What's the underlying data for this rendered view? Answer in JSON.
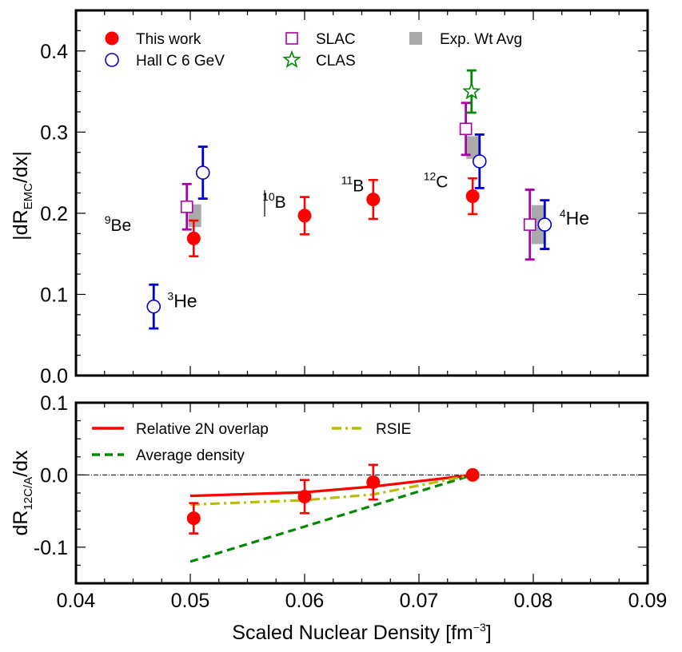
{
  "chart_data": [
    {
      "type": "scatter",
      "panel": "top",
      "ylabel_main": "|dR",
      "ylabel_sub": "EMC",
      "ylabel_tail": "/dx|",
      "xlim": [
        0.04,
        0.09
      ],
      "ylim": [
        0.0,
        0.45
      ],
      "x_ticks": [
        "0.04",
        "0.05",
        "0.06",
        "0.07",
        "0.08",
        "0.09"
      ],
      "y_ticks": [
        "0.0",
        "0.1",
        "0.2",
        "0.3",
        "0.4"
      ],
      "legend": [
        {
          "label": "This work",
          "symbol": "filled-circle",
          "color": "#ff0000"
        },
        {
          "label": "Hall C 6 GeV",
          "symbol": "open-circle",
          "color": "#0000cc"
        },
        {
          "label": "SLAC",
          "symbol": "open-square",
          "color": "#aa00aa"
        },
        {
          "label": "CLAS",
          "symbol": "open-star",
          "color": "#008800"
        },
        {
          "label": "Exp. Wt Avg",
          "symbol": "filled-square",
          "color": "#aaaaaa"
        }
      ],
      "series": [
        {
          "name": "This work",
          "color": "#ff0000",
          "marker": "filled-circle",
          "points": [
            {
              "x": 0.0503,
              "y": 0.169,
              "err": 0.022
            },
            {
              "x": 0.06,
              "y": 0.197,
              "err": 0.023
            },
            {
              "x": 0.066,
              "y": 0.217,
              "err": 0.024
            },
            {
              "x": 0.0747,
              "y": 0.221,
              "err": 0.022
            }
          ]
        },
        {
          "name": "Hall C 6 GeV",
          "color": "#0000cc",
          "marker": "open-circle",
          "points": [
            {
              "x": 0.0468,
              "y": 0.085,
              "err": 0.027
            },
            {
              "x": 0.0511,
              "y": 0.25,
              "err": 0.032
            },
            {
              "x": 0.0753,
              "y": 0.264,
              "err": 0.033
            },
            {
              "x": 0.081,
              "y": 0.186,
              "err": 0.03
            }
          ]
        },
        {
          "name": "SLAC",
          "color": "#aa00aa",
          "marker": "open-square",
          "points": [
            {
              "x": 0.0497,
              "y": 0.208,
              "err": 0.028
            },
            {
              "x": 0.0741,
              "y": 0.304,
              "err": 0.032
            },
            {
              "x": 0.0797,
              "y": 0.186,
              "err": 0.043
            }
          ]
        },
        {
          "name": "CLAS",
          "color": "#008800",
          "marker": "open-star",
          "points": [
            {
              "x": 0.0746,
              "y": 0.35,
              "err": 0.026
            }
          ]
        },
        {
          "name": "Exp. Wt Avg",
          "color": "#aaaaaa",
          "marker": "band",
          "points": [
            {
              "x": 0.0504,
              "y": 0.197,
              "err": 0.014
            },
            {
              "x": 0.0747,
              "y": 0.281,
              "err": 0.014
            },
            {
              "x": 0.0804,
              "y": 0.186,
              "err": 0.024
            }
          ]
        }
      ],
      "annotations": [
        {
          "mass": "9",
          "symbol": "Be",
          "x": 0.0425,
          "y": 0.178,
          "big": false
        },
        {
          "mass": "3",
          "symbol": "He",
          "x": 0.048,
          "y": 0.084,
          "big": true
        },
        {
          "mass": "10",
          "symbol": "B",
          "x": 0.0563,
          "y": 0.207,
          "big": false
        },
        {
          "mass": "11",
          "symbol": "B",
          "x": 0.0632,
          "y": 0.227,
          "big": false
        },
        {
          "mass": "12",
          "symbol": "C",
          "x": 0.0704,
          "y": 0.232,
          "big": false
        },
        {
          "mass": "4",
          "symbol": "He",
          "x": 0.0823,
          "y": 0.186,
          "big": true
        }
      ]
    },
    {
      "type": "line",
      "panel": "bottom",
      "ylabel_main": "dR",
      "ylabel_sub": "12C/A",
      "ylabel_tail": "/dx",
      "xlabel": "Scaled Nuclear Density [fm",
      "xlabel_sup": "−3",
      "xlabel_tail": "]",
      "xlim": [
        0.04,
        0.09
      ],
      "ylim": [
        -0.15,
        0.1
      ],
      "x_ticks": [
        "0.04",
        "0.05",
        "0.06",
        "0.07",
        "0.08",
        "0.09"
      ],
      "y_ticks": [
        "0.1",
        "0.0",
        "-0.1"
      ],
      "legend": [
        {
          "label": "Relative 2N overlap",
          "style": "solid",
          "color": "#ff0000"
        },
        {
          "label": "Average density",
          "style": "dashed",
          "color": "#008800"
        },
        {
          "label": "RSIE",
          "style": "dashdot",
          "color": "#bbbb00"
        }
      ],
      "points": [
        {
          "x": 0.0503,
          "y": -0.06,
          "err": 0.021
        },
        {
          "x": 0.06,
          "y": -0.03,
          "err": 0.023
        },
        {
          "x": 0.066,
          "y": -0.01,
          "err": 0.024
        },
        {
          "x": 0.0747,
          "y": 0.0,
          "err": 0.0
        }
      ],
      "lines": [
        {
          "name": "Relative 2N overlap",
          "color": "#ff0000",
          "style": "solid",
          "x": [
            0.05,
            0.06,
            0.066,
            0.0747
          ],
          "y": [
            -0.029,
            -0.024,
            -0.016,
            0.0
          ]
        },
        {
          "name": "Average density",
          "color": "#008800",
          "style": "dashed",
          "x": [
            0.05,
            0.0747
          ],
          "y": [
            -0.12,
            0.0
          ]
        },
        {
          "name": "RSIE",
          "color": "#bbbb00",
          "style": "dashdot",
          "x": [
            0.05,
            0.06,
            0.066,
            0.0747
          ],
          "y": [
            -0.041,
            -0.035,
            -0.027,
            0.0
          ]
        }
      ],
      "zero_line": true
    }
  ]
}
